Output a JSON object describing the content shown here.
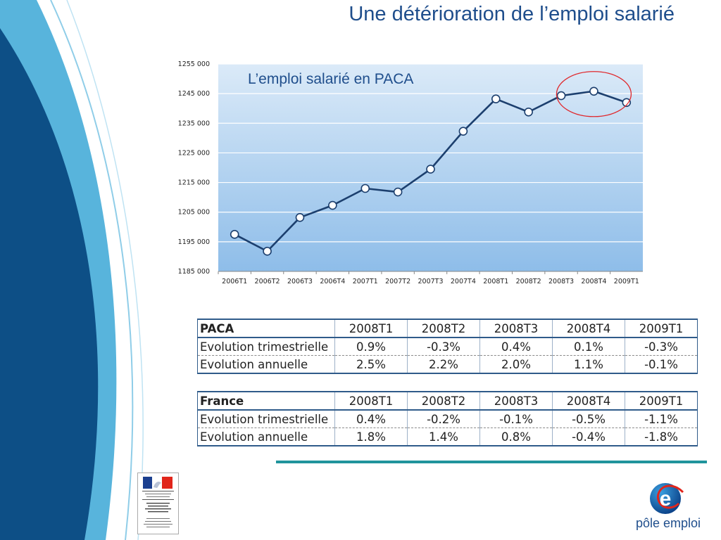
{
  "slide": {
    "title": "Une détérioration de l’emploi salarié"
  },
  "chart_data": {
    "type": "line",
    "subtitle": "L’emploi salarié en PACA",
    "categories": [
      "2006T1",
      "2006T2",
      "2006T3",
      "2006T4",
      "2007T1",
      "2007T2",
      "2007T3",
      "2007T4",
      "2008T1",
      "2008T2",
      "2008T3",
      "2008T4",
      "2009T1"
    ],
    "values": [
      1197500,
      1191800,
      1203200,
      1207300,
      1213000,
      1211800,
      1219500,
      1232300,
      1243200,
      1238800,
      1244300,
      1245800,
      1242000
    ],
    "ylim": [
      1185000,
      1255000
    ],
    "yticks": [
      1185000,
      1195000,
      1205000,
      1215000,
      1225000,
      1235000,
      1245000,
      1255000
    ],
    "ytick_labels": [
      "1185 000",
      "1195 000",
      "1205 000",
      "1215 000",
      "1225 000",
      "1235 000",
      "1245 000",
      "1255 000"
    ],
    "grid": true,
    "legend": "none",
    "highlighted_category": "2008T4",
    "colors": {
      "line": "#1c3f6e",
      "marker_fill": "#ffffff",
      "plot_top": "#dbeaf8",
      "plot_bottom": "#8ebde9",
      "highlight": "#e0282c"
    }
  },
  "tables": [
    {
      "region": "PACA",
      "columns": [
        "2008T1",
        "2008T2",
        "2008T3",
        "2008T4",
        "2009T1"
      ],
      "rows": [
        {
          "label": "Evolution trimestrielle",
          "values": [
            "0.9%",
            "-0.3%",
            "0.4%",
            "0.1%",
            "-0.3%"
          ]
        },
        {
          "label": "Evolution annuelle",
          "values": [
            "2.5%",
            "2.2%",
            "2.0%",
            "1.1%",
            "-0.1%"
          ]
        }
      ]
    },
    {
      "region": "France",
      "columns": [
        "2008T1",
        "2008T2",
        "2008T3",
        "2008T4",
        "2009T1"
      ],
      "rows": [
        {
          "label": "Evolution trimestrielle",
          "values": [
            "0.4%",
            "-0.2%",
            "-0.1%",
            "-0.5%",
            "-1.1%"
          ]
        },
        {
          "label": "Evolution annuelle",
          "values": [
            "1.8%",
            "1.4%",
            "0.8%",
            "-0.4%",
            "-1.8%"
          ]
        }
      ]
    }
  ],
  "logos": {
    "left": {
      "name": "prefecture-logo",
      "lines": [
        "Liberté · Égalité · Fraternité",
        "RÉPUBLIQUE FRANÇAISE",
        "PRÉFECTURE",
        "DE LA RÉGION",
        "PROVENCE ALPES",
        "CÔTE D'AZUR",
        "Direction régionale",
        "du travail, de l'emploi",
        "et de la formation professionnelle"
      ]
    },
    "right": {
      "name": "pole-emploi-logo",
      "text": "pôle emploi"
    }
  },
  "theme": {
    "title_color": "#1f4e8c",
    "deco_dark": "#0d4f86",
    "deco_light": "#58b4dc",
    "accent_teal": "#20949c"
  }
}
